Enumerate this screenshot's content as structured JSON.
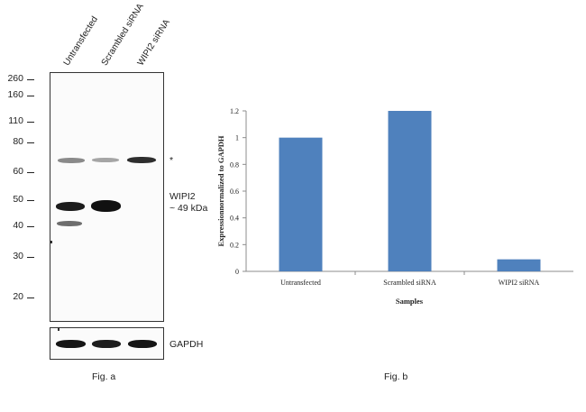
{
  "fig_a": {
    "lanes": [
      "Untransfected",
      "Scrambled siRNA",
      "WIPI2 siRNA"
    ],
    "mw_markers": [
      "260",
      "160",
      "110",
      "80",
      "60",
      "50",
      "40",
      "30",
      "20"
    ],
    "asterisk": "*",
    "target_label": "WIPI2",
    "target_size": "~ 49 kDa",
    "loading_control": "GAPDH",
    "caption": "Fig. a"
  },
  "fig_b": {
    "caption": "Fig. b"
  },
  "chart_data": {
    "type": "bar",
    "categories": [
      "Untransfected",
      "Scrambled siRNA",
      "WIPI2 siRNA"
    ],
    "values": [
      1.0,
      1.2,
      0.09
    ],
    "xlabel": "Samples",
    "ylabel": "Expressionnormalized to GAPDH",
    "ylim": [
      0,
      1.2
    ],
    "yticks": [
      "0",
      "0.2",
      "0.4",
      "0.6",
      "0.8",
      "1",
      "1.2"
    ],
    "bar_color": "#4f81bd",
    "grid": false,
    "legend": "none"
  }
}
